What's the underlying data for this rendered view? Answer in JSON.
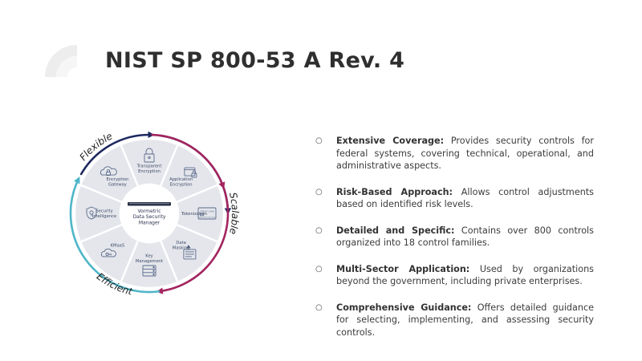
{
  "slide": {
    "title": "NIST SP 800-53 A Rev. 4"
  },
  "diagram": {
    "arcs": [
      {
        "label": "Flexible",
        "color": "#1f2a60"
      },
      {
        "label": "Scalable",
        "color": "#a3245f"
      },
      {
        "label": "Efficient",
        "color": "#4fb6c9"
      }
    ],
    "center": [
      "Vormetric",
      "Data Security",
      "Manager"
    ],
    "segments": [
      {
        "lines": [
          "Transparent",
          "Encryption"
        ],
        "icon": "padlock-icon"
      },
      {
        "lines": [
          "Application",
          "Encryption"
        ],
        "icon": "application-window-icon"
      },
      {
        "lines": [
          "Tokenization"
        ],
        "icon": "credit-card-icon",
        "card_title": "CREDIT CARD",
        "card_number": "7246 9078 9100 6607"
      },
      {
        "lines": [
          "Data",
          "Masking"
        ],
        "icon": "masked-form-icon"
      },
      {
        "lines": [
          "Key",
          "Management"
        ],
        "icon": "server-rack-icon"
      },
      {
        "lines": [
          "KMaaS"
        ],
        "icon": "cloud-key-icon"
      },
      {
        "lines": [
          "Security",
          "Intelligence"
        ],
        "icon": "shield-icon"
      },
      {
        "lines": [
          "Encryption",
          "Gateway"
        ],
        "icon": "cloud-lock-icon"
      }
    ]
  },
  "bullets": [
    {
      "heading": "Extensive Coverage:",
      "text": "Provides security controls for federal systems, covering technical, operational, and administrative aspects."
    },
    {
      "heading": "Risk-Based Approach:",
      "text": "Allows control adjustments based on identified risk levels."
    },
    {
      "heading": "Detailed and Specific:",
      "text": "Contains over 800 controls organized into 18 control families."
    },
    {
      "heading": "Multi-Sector Application:",
      "text": "Used by organizations beyond the government, including private enterprises."
    },
    {
      "heading": "Comprehensive Guidance:",
      "text": "Offers detailed guidance for selecting, implementing, and assessing security controls."
    }
  ],
  "bullet_marker": "○",
  "colors": {
    "title": "#2f2f2f",
    "segment_fill": "#e4e6ec",
    "segment_border": "#ffffff",
    "icon": "#5a6a8a",
    "arc_flexible": "#1f2a60",
    "arc_scalable": "#a3245f",
    "arc_efficient": "#4fb6c9"
  }
}
